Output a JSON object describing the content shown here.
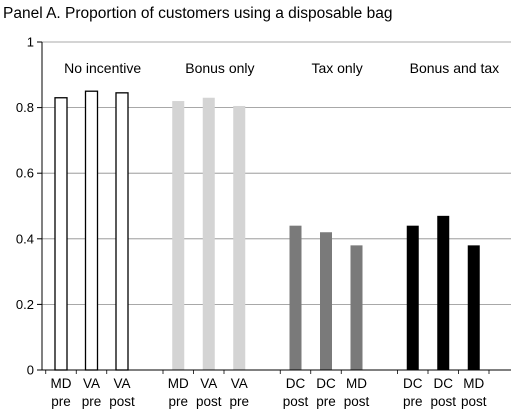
{
  "chart_data": {
    "type": "bar",
    "title": "Panel A. Proportion of customers using a disposable bag",
    "xlabel": "",
    "ylabel": "",
    "ylim": [
      0,
      1
    ],
    "yticks": [
      {
        "value": 0,
        "label": "0"
      },
      {
        "value": 0.2,
        "label": "0.2"
      },
      {
        "value": 0.4,
        "label": "0.4"
      },
      {
        "value": 0.6,
        "label": "0.6"
      },
      {
        "value": 0.8,
        "label": "0.8"
      },
      {
        "value": 1,
        "label": "1"
      }
    ],
    "grid": true,
    "groups": [
      {
        "label": "No incentive",
        "color": "#ffffff",
        "stroke": "#000000",
        "bars": [
          {
            "line1": "MD",
            "line2": "pre",
            "value": 0.83
          },
          {
            "line1": "VA",
            "line2": "pre",
            "value": 0.85
          },
          {
            "line1": "VA",
            "line2": "post",
            "value": 0.845
          }
        ]
      },
      {
        "label": "Bonus only",
        "color": "#d4d4d4",
        "stroke": "#d4d4d4",
        "bars": [
          {
            "line1": "MD",
            "line2": "pre",
            "value": 0.82
          },
          {
            "line1": "VA",
            "line2": "post",
            "value": 0.83
          },
          {
            "line1": "VA",
            "line2": "pre",
            "value": 0.805
          }
        ]
      },
      {
        "label": "Tax only",
        "color": "#7a7a7a",
        "stroke": "#7a7a7a",
        "bars": [
          {
            "line1": "DC",
            "line2": "post",
            "value": 0.44
          },
          {
            "line1": "DC",
            "line2": "pre",
            "value": 0.42
          },
          {
            "line1": "MD",
            "line2": "post",
            "value": 0.38
          }
        ]
      },
      {
        "label": "Bonus and tax",
        "color": "#000000",
        "stroke": "#000000",
        "bars": [
          {
            "line1": "DC",
            "line2": "pre",
            "value": 0.44
          },
          {
            "line1": "DC",
            "line2": "post",
            "value": 0.47
          },
          {
            "line1": "MD",
            "line2": "post",
            "value": 0.38
          }
        ]
      }
    ]
  }
}
